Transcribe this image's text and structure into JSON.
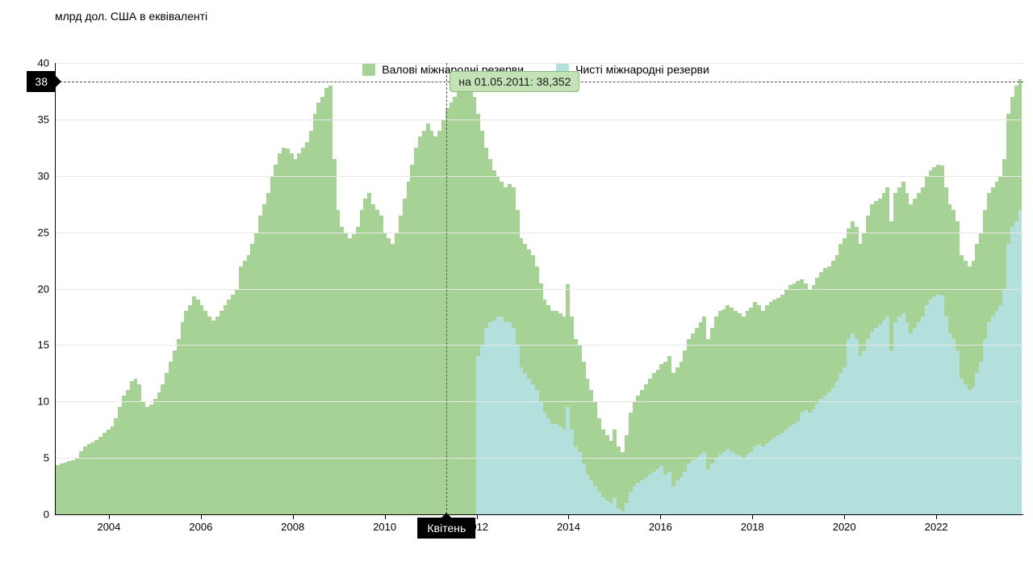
{
  "y_axis_title": "млрд дол. США в еквіваленті",
  "colors": {
    "gross": "#a6d395",
    "net": "#b3e0dc",
    "grid": "#e8e8e8",
    "axis": "#000000",
    "tooltip_bg": "#c3e2b6",
    "tooltip_border": "#8fb87d",
    "badge_bg": "#000000",
    "background": "#ffffff"
  },
  "chart": {
    "type": "area-bar",
    "y_min": 0,
    "y_max": 40,
    "y_step": 5,
    "x_ticks": [
      "2004",
      "2006",
      "2008",
      "2010",
      "2012",
      "2014",
      "2016",
      "2018",
      "2020",
      "2022"
    ],
    "x_tick_positions_pct": [
      5.5,
      15.0,
      24.5,
      34.0,
      43.5,
      53.0,
      62.5,
      72.0,
      81.5,
      91.0
    ],
    "crosshair": {
      "value": 38.352,
      "x_position_pct": 40.4,
      "y_label": "38",
      "x_label": "Квітень",
      "tooltip": "на 01.05.2011: 38,352"
    }
  },
  "legend": {
    "gross": "Валові міжнародні резерви",
    "net": "Чисті міжнародні резерви"
  },
  "series_description": "Monthly data ~2003-01 to 2023-06, ~246 points",
  "gross_values": [
    4.4,
    4.5,
    4.6,
    4.7,
    4.8,
    5.0,
    5.6,
    6.0,
    6.2,
    6.4,
    6.6,
    6.9,
    7.2,
    7.5,
    7.8,
    8.5,
    9.5,
    10.5,
    11.0,
    11.8,
    12.0,
    11.5,
    10.0,
    9.5,
    9.7,
    10.2,
    10.8,
    11.5,
    12.5,
    13.5,
    14.5,
    15.5,
    17.0,
    18.0,
    18.5,
    19.3,
    19.0,
    18.5,
    18.0,
    17.5,
    17.2,
    17.5,
    18.0,
    18.5,
    19.0,
    19.5,
    20.0,
    22.0,
    22.5,
    23.0,
    24.0,
    25.0,
    26.5,
    27.5,
    28.5,
    30.0,
    31.0,
    32.0,
    32.5,
    32.4,
    32.0,
    31.5,
    32.0,
    32.5,
    33.0,
    34.0,
    35.5,
    36.5,
    37.0,
    37.8,
    38.0,
    31.5,
    27.0,
    25.5,
    25.0,
    24.5,
    24.8,
    25.5,
    27.0,
    28.0,
    28.5,
    27.5,
    27.0,
    26.5,
    25.0,
    24.5,
    24.0,
    25.0,
    26.5,
    28.0,
    29.5,
    31.0,
    32.5,
    33.5,
    34.0,
    34.6,
    34.0,
    33.5,
    34.0,
    35.0,
    36.0,
    36.5,
    37.0,
    37.5,
    38.0,
    38.3,
    38.0,
    37.0,
    35.5,
    34.0,
    32.5,
    31.5,
    30.5,
    30.0,
    29.5,
    29.0,
    29.3,
    29.0,
    27.0,
    24.5,
    24.0,
    23.5,
    23.0,
    22.0,
    20.5,
    19.0,
    18.5,
    18.0,
    18.0,
    17.8,
    17.5,
    20.4,
    17.5,
    15.5,
    15.0,
    13.5,
    12.0,
    11.0,
    10.0,
    8.5,
    7.5,
    7.0,
    6.5,
    7.5,
    6.0,
    5.5,
    7.0,
    9.0,
    10.0,
    10.5,
    11.0,
    11.5,
    12.0,
    12.5,
    12.8,
    13.3,
    13.5,
    14.0,
    12.5,
    13.0,
    13.5,
    14.5,
    15.5,
    16.0,
    16.5,
    17.0,
    17.5,
    15.5,
    16.5,
    17.5,
    18.0,
    18.2,
    18.5,
    18.3,
    18.0,
    17.8,
    17.5,
    18.0,
    18.3,
    18.8,
    18.5,
    18.0,
    18.5,
    18.8,
    19.0,
    19.2,
    19.5,
    20.0,
    20.3,
    20.5,
    20.7,
    20.8,
    20.5,
    20.0,
    20.3,
    21.0,
    21.5,
    21.8,
    22.0,
    22.5,
    23.0,
    24.0,
    24.5,
    25.3,
    26.0,
    25.5,
    24.0,
    25.0,
    26.5,
    27.5,
    27.8,
    28.0,
    28.5,
    29.0,
    26.0,
    28.5,
    29.0,
    29.5,
    28.5,
    27.5,
    28.0,
    28.5,
    29.0,
    30.0,
    30.5,
    30.8,
    31.0,
    30.9,
    29.0,
    27.5,
    27.0,
    26.0,
    23.0,
    22.5,
    22.0,
    22.5,
    24.0,
    25.0,
    27.0,
    28.5,
    29.0,
    29.5,
    30.0,
    31.5,
    35.5,
    37.0,
    38.0,
    38.6
  ],
  "net_values": [
    0,
    0,
    0,
    0,
    0,
    0,
    0,
    0,
    0,
    0,
    0,
    0,
    0,
    0,
    0,
    0,
    0,
    0,
    0,
    0,
    0,
    0,
    0,
    0,
    0,
    0,
    0,
    0,
    0,
    0,
    0,
    0,
    0,
    0,
    0,
    0,
    0,
    0,
    0,
    0,
    0,
    0,
    0,
    0,
    0,
    0,
    0,
    0,
    0,
    0,
    0,
    0,
    0,
    0,
    0,
    0,
    0,
    0,
    0,
    0,
    0,
    0,
    0,
    0,
    0,
    0,
    0,
    0,
    0,
    0,
    0,
    0,
    0,
    0,
    0,
    0,
    0,
    0,
    0,
    0,
    0,
    0,
    0,
    0,
    0,
    0,
    0,
    0,
    0,
    0,
    0,
    0,
    0,
    0,
    0,
    0,
    0,
    0,
    0,
    0,
    0,
    0,
    0,
    0,
    0,
    0,
    0,
    0,
    14.0,
    15.0,
    16.5,
    17.0,
    17.2,
    17.5,
    17.5,
    17.0,
    17.0,
    16.5,
    15.0,
    13.0,
    12.5,
    12.0,
    11.5,
    11.0,
    10.0,
    9.0,
    8.5,
    8.0,
    8.0,
    7.8,
    7.5,
    9.5,
    7.5,
    6.0,
    5.5,
    4.5,
    3.5,
    3.0,
    2.5,
    2.0,
    1.5,
    1.2,
    1.0,
    1.5,
    0.5,
    0.3,
    1.0,
    2.0,
    2.5,
    2.8,
    3.0,
    3.2,
    3.5,
    3.8,
    4.0,
    4.3,
    3.5,
    3.8,
    2.5,
    3.0,
    3.3,
    3.8,
    4.5,
    4.8,
    5.0,
    5.3,
    5.5,
    4.0,
    4.5,
    5.0,
    5.3,
    5.5,
    5.8,
    5.6,
    5.4,
    5.2,
    5.0,
    5.3,
    5.5,
    6.0,
    6.2,
    6.0,
    6.3,
    6.5,
    6.8,
    7.0,
    7.2,
    7.5,
    7.8,
    8.0,
    8.2,
    9.0,
    9.2,
    9.0,
    9.3,
    9.8,
    10.2,
    10.5,
    10.8,
    11.2,
    11.8,
    12.5,
    13.0,
    15.5,
    16.0,
    15.5,
    14.0,
    14.5,
    15.5,
    16.2,
    16.5,
    16.8,
    17.2,
    17.5,
    14.5,
    17.0,
    17.5,
    17.8,
    17.0,
    16.0,
    16.5,
    17.0,
    17.5,
    18.5,
    19.0,
    19.3,
    19.5,
    19.4,
    17.5,
    16.0,
    15.5,
    14.5,
    12.0,
    11.5,
    11.0,
    11.3,
    12.5,
    13.5,
    15.5,
    17.0,
    17.5,
    18.0,
    18.5,
    20.0,
    24.0,
    25.5,
    26.0,
    27.0
  ]
}
